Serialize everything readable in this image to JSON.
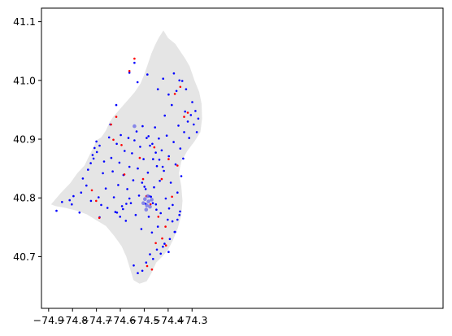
{
  "chart_data": {
    "type": "scatter",
    "title": "",
    "xlabel": "",
    "ylabel": "",
    "xlim": [
      -74.93,
      -73.25
    ],
    "ylim": [
      40.612,
      41.123
    ],
    "x_ticks": [
      -74.9,
      -74.8,
      -74.7,
      -74.6,
      -74.5,
      -74.4,
      -74.3
    ],
    "x_tick_labels": [
      "−74.9",
      "−74.8",
      "−74.7",
      "−74.6",
      "−74.5",
      "−74.4",
      "−74.3"
    ],
    "y_ticks": [
      40.7,
      40.8,
      40.9,
      41.0,
      41.1
    ],
    "y_tick_labels": [
      "40.7",
      "40.8",
      "40.9",
      "41.0",
      "41.1"
    ],
    "grid": false,
    "legend": "none",
    "background_region": {
      "color": "#e5e5e5",
      "boundary": [
        [
          -74.89,
          40.789
        ],
        [
          -74.85,
          40.808
        ],
        [
          -74.81,
          40.825
        ],
        [
          -74.78,
          40.842
        ],
        [
          -74.75,
          40.855
        ],
        [
          -74.73,
          40.872
        ],
        [
          -74.71,
          40.888
        ],
        [
          -74.7,
          40.898
        ],
        [
          -74.68,
          40.903
        ],
        [
          -74.66,
          40.915
        ],
        [
          -74.645,
          40.929
        ],
        [
          -74.63,
          40.938
        ],
        [
          -74.6,
          40.952
        ],
        [
          -74.57,
          40.966
        ],
        [
          -74.54,
          40.98
        ],
        [
          -74.515,
          40.995
        ],
        [
          -74.5,
          41.01
        ],
        [
          -74.485,
          41.028
        ],
        [
          -74.47,
          41.046
        ],
        [
          -74.455,
          41.06
        ],
        [
          -74.44,
          41.072
        ],
        [
          -74.42,
          41.085
        ],
        [
          -74.4,
          41.072
        ],
        [
          -74.37,
          41.062
        ],
        [
          -74.35,
          41.05
        ],
        [
          -74.33,
          41.038
        ],
        [
          -74.31,
          41.024
        ],
        [
          -74.29,
          41.0
        ],
        [
          -74.27,
          40.98
        ],
        [
          -74.26,
          40.96
        ],
        [
          -74.258,
          40.935
        ],
        [
          -74.265,
          40.912
        ],
        [
          -74.29,
          40.896
        ],
        [
          -74.32,
          40.88
        ],
        [
          -74.345,
          40.862
        ],
        [
          -74.355,
          40.842
        ],
        [
          -74.345,
          40.82
        ],
        [
          -74.34,
          40.795
        ],
        [
          -74.345,
          40.77
        ],
        [
          -74.36,
          40.748
        ],
        [
          -74.38,
          40.728
        ],
        [
          -74.4,
          40.712
        ],
        [
          -74.425,
          40.7
        ],
        [
          -74.45,
          40.69
        ],
        [
          -74.47,
          40.672
        ],
        [
          -74.49,
          40.658
        ],
        [
          -74.52,
          40.654
        ],
        [
          -74.545,
          40.66
        ],
        [
          -74.56,
          40.68
        ],
        [
          -74.575,
          40.7
        ],
        [
          -74.595,
          40.718
        ],
        [
          -74.625,
          40.735
        ],
        [
          -74.66,
          40.752
        ],
        [
          -74.7,
          40.762
        ],
        [
          -74.74,
          40.772
        ],
        [
          -74.78,
          40.778
        ],
        [
          -74.83,
          40.783
        ],
        [
          -74.87,
          40.786
        ]
      ]
    },
    "series": [
      {
        "color": "#0000ff",
        "marker_size": 2,
        "points": [
          [
            -74.867,
            40.778
          ],
          [
            -74.844,
            40.793
          ],
          [
            -74.812,
            40.796
          ],
          [
            -74.803,
            40.789
          ],
          [
            -74.796,
            40.803
          ],
          [
            -74.771,
            40.775
          ],
          [
            -74.764,
            40.809
          ],
          [
            -74.757,
            40.833
          ],
          [
            -74.742,
            40.821
          ],
          [
            -74.723,
            40.795
          ],
          [
            -74.716,
            40.873
          ],
          [
            -74.708,
            40.885
          ],
          [
            -74.7,
            40.896
          ],
          [
            -74.691,
            40.801
          ],
          [
            -74.687,
            40.767
          ],
          [
            -74.68,
            40.788
          ],
          [
            -74.673,
            40.842
          ],
          [
            -74.668,
            40.862
          ],
          [
            -74.661,
            40.816
          ],
          [
            -74.654,
            40.783
          ],
          [
            -74.647,
            40.903
          ],
          [
            -74.642,
            40.925
          ],
          [
            -74.638,
            40.868
          ],
          [
            -74.632,
            40.845
          ],
          [
            -74.627,
            40.801
          ],
          [
            -74.621,
            40.776
          ],
          [
            -74.615,
            40.892
          ],
          [
            -74.609,
            40.822
          ],
          [
            -74.604,
            40.86
          ],
          [
            -74.598,
            40.907
          ],
          [
            -74.593,
            40.786
          ],
          [
            -74.587,
            40.839
          ],
          [
            -74.582,
            40.88
          ],
          [
            -74.577,
            40.761
          ],
          [
            -74.571,
            40.815
          ],
          [
            -74.566,
            40.902
          ],
          [
            -74.562,
            40.853
          ],
          [
            -74.556,
            40.791
          ],
          [
            -74.551,
            40.876
          ],
          [
            -74.546,
            40.83
          ],
          [
            -74.541,
            40.898
          ],
          [
            -74.536,
            40.771
          ],
          [
            -74.532,
            40.913
          ],
          [
            -74.527,
            40.85
          ],
          [
            -74.522,
            40.804
          ],
          [
            -74.517,
            40.887
          ],
          [
            -74.512,
            40.747
          ],
          [
            -74.507,
            40.922
          ],
          [
            -74.503,
            40.866
          ],
          [
            -74.499,
            40.819
          ],
          [
            -74.494,
            40.79
          ],
          [
            -74.49,
            40.902
          ],
          [
            -74.485,
            40.843
          ],
          [
            -74.481,
            40.768
          ],
          [
            -74.476,
            40.889
          ],
          [
            -74.472,
            40.802
          ],
          [
            -74.468,
            40.741
          ],
          [
            -74.463,
            40.866
          ],
          [
            -74.459,
            40.818
          ],
          [
            -74.455,
            40.92
          ],
          [
            -74.451,
            40.789
          ],
          [
            -74.447,
            40.854
          ],
          [
            -74.443,
            40.751
          ],
          [
            -74.439,
            40.901
          ],
          [
            -74.435,
            40.829
          ],
          [
            -74.431,
            40.774
          ],
          [
            -74.427,
            40.881
          ],
          [
            -74.422,
            40.717
          ],
          [
            -74.418,
            40.846
          ],
          [
            -74.414,
            40.94
          ],
          [
            -74.41,
            40.799
          ],
          [
            -74.406,
            40.906
          ],
          [
            -74.402,
            40.763
          ],
          [
            -74.397,
            40.871
          ],
          [
            -74.393,
            40.73
          ],
          [
            -74.389,
            40.826
          ],
          [
            -74.385,
            40.958
          ],
          [
            -74.381,
            40.788
          ],
          [
            -74.377,
            40.895
          ],
          [
            -74.373,
            40.742
          ],
          [
            -74.369,
            40.857
          ],
          [
            -74.365,
            40.982
          ],
          [
            -74.361,
            40.809
          ],
          [
            -74.357,
            40.923
          ],
          [
            -74.353,
            40.771
          ],
          [
            -74.349,
            40.884
          ],
          [
            -74.345,
            40.837
          ],
          [
            -74.341,
            40.999
          ],
          [
            -74.337,
            40.867
          ],
          [
            -74.333,
            40.912
          ],
          [
            -74.329,
            40.947
          ],
          [
            -74.325,
            40.985
          ],
          [
            -74.318,
            40.93
          ],
          [
            -74.312,
            40.902
          ],
          [
            -74.305,
            40.941
          ],
          [
            -74.299,
            40.963
          ],
          [
            -74.293,
            40.925
          ],
          [
            -74.286,
            40.948
          ],
          [
            -74.28,
            40.912
          ],
          [
            -74.274,
            40.935
          ],
          [
            -74.544,
            40.685
          ],
          [
            -74.527,
            40.672
          ],
          [
            -74.508,
            40.676
          ],
          [
            -74.492,
            40.69
          ],
          [
            -74.476,
            40.704
          ],
          [
            -74.463,
            40.696
          ],
          [
            -74.447,
            40.712
          ],
          [
            -74.431,
            40.705
          ],
          [
            -74.415,
            40.722
          ],
          [
            -74.398,
            40.708
          ],
          [
            -74.617,
            40.958
          ],
          [
            -74.562,
            41.013
          ],
          [
            -74.528,
            40.997
          ],
          [
            -74.541,
            41.03
          ],
          [
            -74.487,
            41.01
          ],
          [
            -74.443,
            40.985
          ],
          [
            -74.421,
            41.003
          ],
          [
            -74.398,
            40.976
          ],
          [
            -74.376,
            41.012
          ],
          [
            -74.353,
            41.0
          ],
          [
            -74.482,
            40.905
          ],
          [
            -74.466,
            40.892
          ],
          [
            -74.452,
            40.877
          ],
          [
            -74.437,
            40.865
          ],
          [
            -74.423,
            40.853
          ],
          [
            -74.509,
            40.826
          ],
          [
            -74.494,
            40.815
          ],
          [
            -74.479,
            40.803
          ],
          [
            -74.464,
            40.791
          ],
          [
            -74.449,
            40.78
          ],
          [
            -74.735,
            40.848
          ],
          [
            -74.724,
            40.859
          ],
          [
            -74.712,
            40.867
          ],
          [
            -74.698,
            40.878
          ],
          [
            -74.687,
            40.889
          ],
          [
            -74.614,
            40.775
          ],
          [
            -74.601,
            40.768
          ],
          [
            -74.589,
            40.781
          ],
          [
            -74.575,
            40.79
          ],
          [
            -74.562,
            40.799
          ],
          [
            -74.396,
            40.782
          ],
          [
            -74.382,
            40.76
          ],
          [
            -74.371,
            40.742
          ],
          [
            -74.361,
            40.763
          ],
          [
            -74.35,
            40.777
          ]
        ]
      },
      {
        "color": "#ff0000",
        "marker_size": 2,
        "points": [
          [
            -74.719,
            40.813
          ],
          [
            -74.701,
            40.795
          ],
          [
            -74.688,
            40.766
          ],
          [
            -74.639,
            40.925
          ],
          [
            -74.629,
            40.899
          ],
          [
            -74.617,
            40.938
          ],
          [
            -74.595,
            40.89
          ],
          [
            -74.583,
            40.84
          ],
          [
            -74.562,
            41.016
          ],
          [
            -74.541,
            41.037
          ],
          [
            -74.519,
            40.868
          ],
          [
            -74.505,
            40.832
          ],
          [
            -74.491,
            40.803
          ],
          [
            -74.474,
            40.789
          ],
          [
            -74.458,
            40.886
          ],
          [
            -74.441,
            40.768
          ],
          [
            -74.427,
            40.832
          ],
          [
            -74.411,
            40.751
          ],
          [
            -74.398,
            40.866
          ],
          [
            -74.384,
            40.802
          ],
          [
            -74.372,
            40.977
          ],
          [
            -74.361,
            40.855
          ],
          [
            -74.349,
            40.989
          ],
          [
            -74.333,
            40.938
          ],
          [
            -74.318,
            40.945
          ],
          [
            -74.488,
            40.684
          ],
          [
            -74.468,
            40.678
          ],
          [
            -74.452,
            40.723
          ],
          [
            -74.425,
            40.731
          ],
          [
            -74.409,
            40.719
          ]
        ]
      },
      {
        "color": "#6f6fe8",
        "marker_size": 4,
        "points": [
          [
            -74.504,
            40.791
          ],
          [
            -74.497,
            40.798
          ],
          [
            -74.489,
            40.787
          ],
          [
            -74.482,
            40.794
          ],
          [
            -74.476,
            40.785
          ],
          [
            -74.469,
            40.797
          ],
          [
            -74.492,
            40.78
          ],
          [
            -74.485,
            40.803
          ],
          [
            -74.541,
            40.922
          ]
        ]
      }
    ]
  }
}
